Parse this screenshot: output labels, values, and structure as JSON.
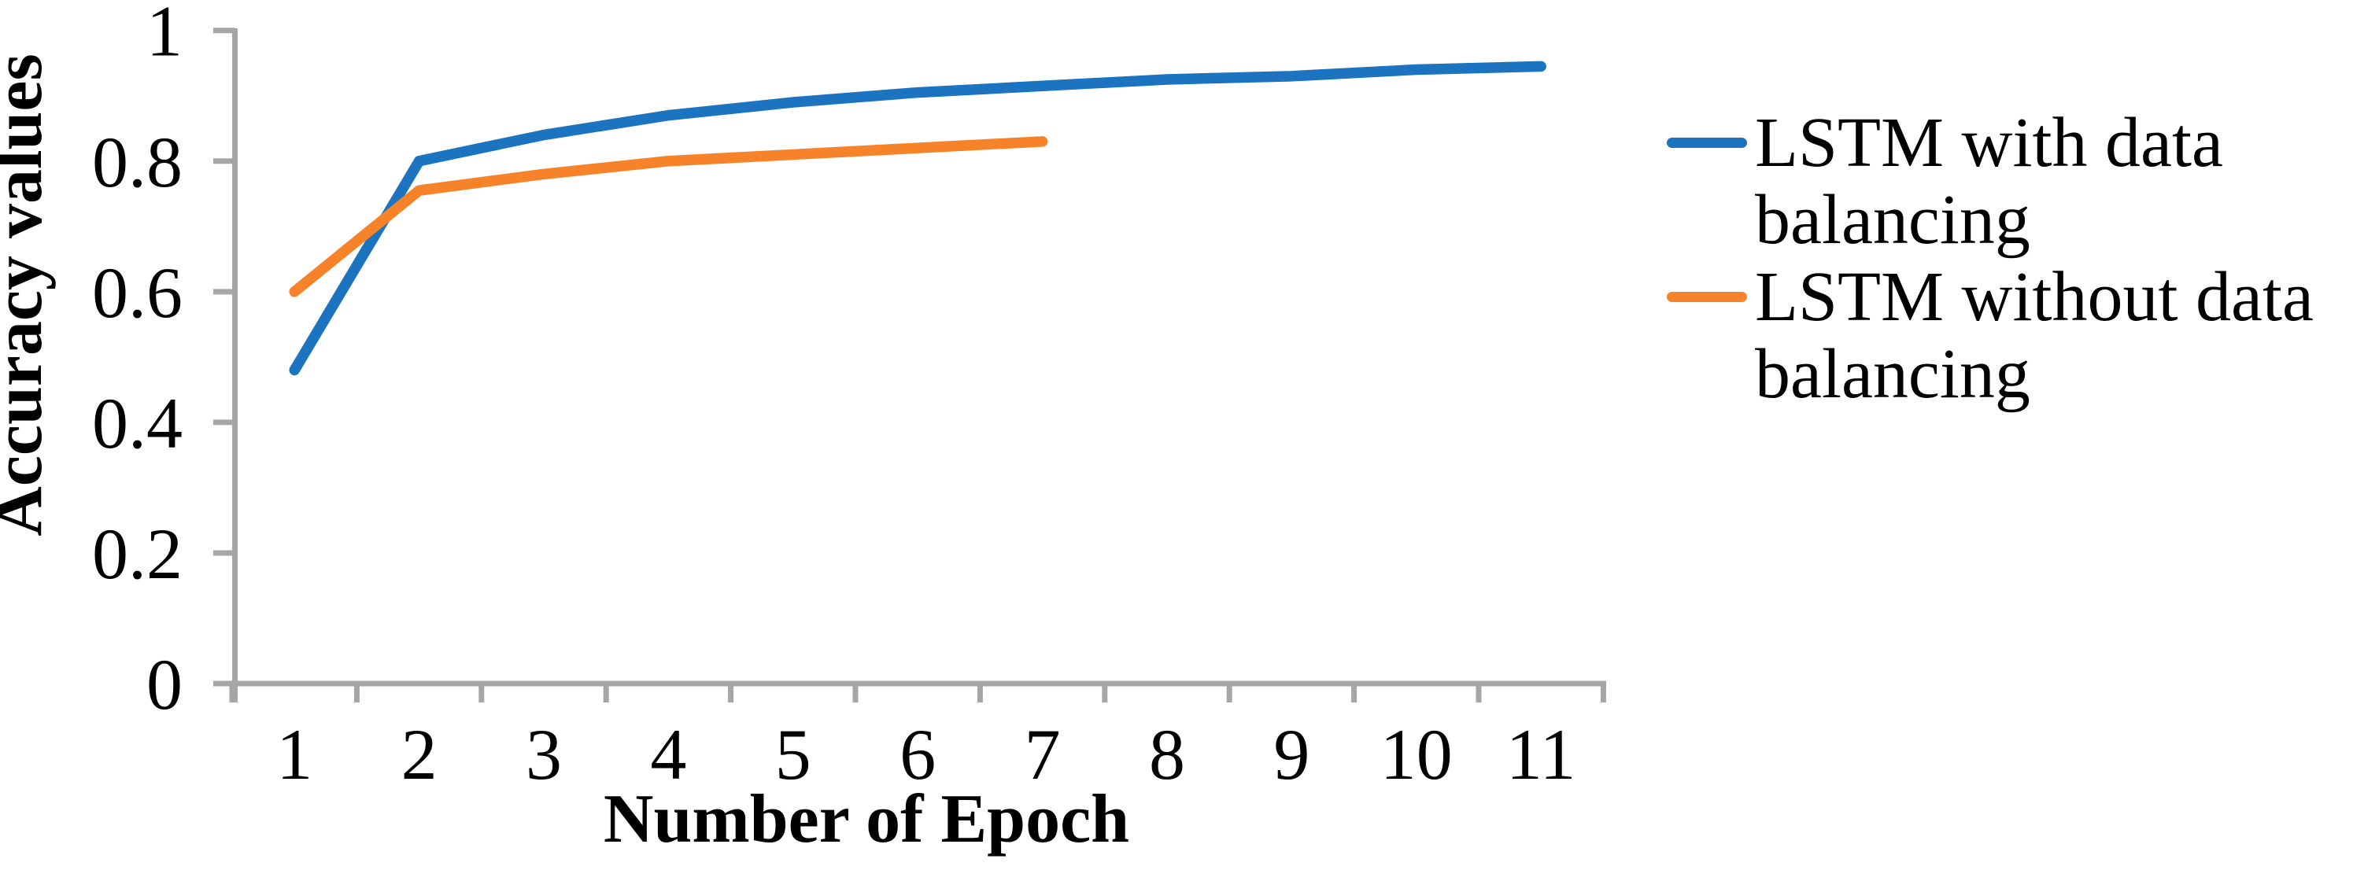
{
  "figure": {
    "background_color": "#ffffff",
    "axis_color": "#a6a6a6"
  },
  "chart_data": {
    "type": "line",
    "title": "",
    "xlabel": "Number of Epoch",
    "ylabel": "Accuracy values",
    "x_tick_labels": [
      "1",
      "2",
      "3",
      "4",
      "5",
      "6",
      "7",
      "8",
      "9",
      "10",
      "11"
    ],
    "y_tick_values": [
      0,
      0.2,
      0.4,
      0.6,
      0.8,
      1
    ],
    "y_tick_labels": [
      "0",
      "0.2",
      "0.4",
      "0.6",
      "0.8",
      "1"
    ],
    "ylim": [
      0,
      1
    ],
    "grid": false,
    "legend_position": "right-outside",
    "series": [
      {
        "name": "LSTM with data balancing",
        "name_lines": [
          "LSTM with data",
          "balancing"
        ],
        "color": "#1c73bf",
        "x": [
          1,
          2,
          3,
          4,
          5,
          6,
          7,
          8,
          9,
          10,
          11
        ],
        "values": [
          0.48,
          0.8,
          0.84,
          0.87,
          0.89,
          0.905,
          0.915,
          0.925,
          0.93,
          0.94,
          0.945
        ]
      },
      {
        "name": "LSTM without data balancing",
        "name_lines": [
          "LSTM without data",
          "balancing"
        ],
        "color": "#f68329",
        "x": [
          1,
          2,
          3,
          4,
          5,
          6,
          7
        ],
        "values": [
          0.6,
          0.755,
          0.78,
          0.8,
          0.81,
          0.82,
          0.83
        ]
      }
    ]
  }
}
